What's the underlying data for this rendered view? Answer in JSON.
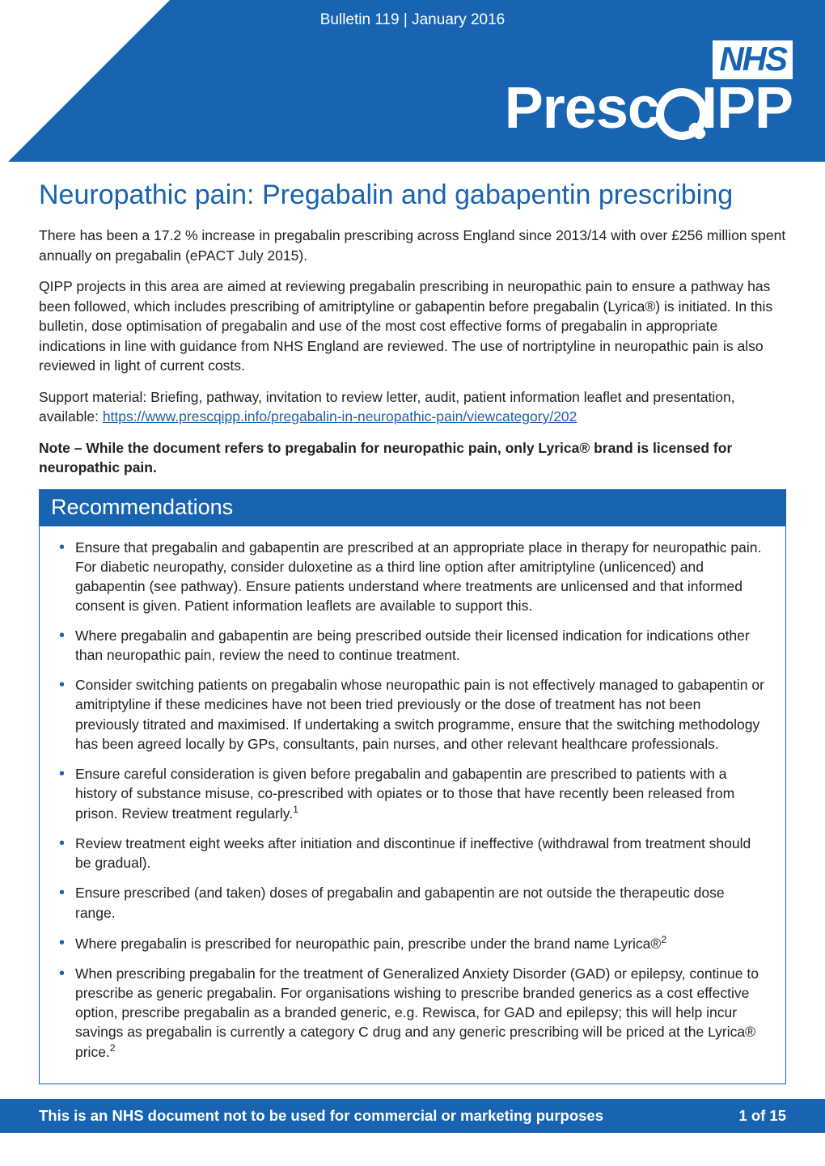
{
  "colors": {
    "primary": "#1864b0",
    "white": "#ffffff",
    "text": "#222222",
    "link": "#1864b0"
  },
  "typography": {
    "body_fontsize": 17.5,
    "h1_fontsize": 34,
    "rec_header_fontsize": 27,
    "footer_fontsize": 18.5,
    "logo_nhs_fontsize": 42,
    "logo_prescqipp_fontsize": 72
  },
  "header": {
    "bulletin_line": "Bulletin 119 | January 2016",
    "logo_nhs": "NHS",
    "logo_main_pre": "Presc",
    "logo_main_post": "IPP"
  },
  "title": "Neuropathic pain: Pregabalin and gabapentin prescribing",
  "paragraphs": {
    "p1": "There has been a 17.2 % increase in pregabalin prescribing across England since 2013/14 with over £256 million spent annually on pregabalin (ePACT July 2015).",
    "p2": "QIPP projects in this area are aimed at reviewing pregabalin prescribing in neuropathic pain to ensure a pathway has been followed, which includes prescribing of amitriptyline or gabapentin before pregabalin (Lyrica®) is initiated. In this bulletin, dose optimisation of pregabalin and use of the most cost effective forms of pregabalin in appropriate indications in line with guidance from NHS England are reviewed. The use of nortriptyline in neuropathic pain is also reviewed in light of current costs.",
    "p3_pre": "Support material:  Briefing, pathway, invitation to review letter, audit, patient information leaflet and presentation, available: ",
    "p3_link": "https://www.prescqipp.info/pregabalin-in-neuropathic-pain/viewcategory/202",
    "note": "Note – While the document refers to pregabalin for neuropathic pain, only Lyrica® brand is licensed for neuropathic pain."
  },
  "recommendations": {
    "header": "Recommendations",
    "items": [
      "Ensure that pregabalin and gabapentin are prescribed at an appropriate place in therapy for neuropathic pain. For diabetic neuropathy, consider duloxetine as a third line option after amitriptyline (unlicenced) and gabapentin (see pathway). Ensure patients understand where treatments are unlicensed and that informed consent is given. Patient information leaflets are available to support this.",
      "Where pregabalin and gabapentin are being prescribed outside their licensed indication for indications other than neuropathic pain, review the need to continue treatment.",
      "Consider switching patients on pregabalin whose neuropathic pain is not effectively managed to gabapentin or amitriptyline if these medicines have not been tried previously or the dose of treatment has not been previously titrated and maximised. If undertaking a switch programme, ensure that the switching methodology has been agreed locally by GPs, consultants, pain nurses, and other relevant healthcare professionals.",
      "Ensure careful consideration is given before pregabalin and gabapentin are prescribed to patients with a history of substance misuse, co-prescribed with opiates or to those that have recently been released from prison. Review treatment regularly.",
      "Review treatment eight weeks after initiation and discontinue if ineffective (withdrawal from treatment should be gradual).",
      "Ensure prescribed (and taken) doses of pregabalin and gabapentin are not outside the therapeutic dose range.",
      "Where pregabalin is prescribed for neuropathic pain, prescribe under the brand name Lyrica®",
      "When prescribing pregabalin for the treatment of Generalized Anxiety Disorder (GAD) or epilepsy, continue to prescribe as generic pregabalin. For organisations wishing to prescribe branded generics as a cost effective option, prescribe pregabalin as a branded generic, e.g. Rewisca, for GAD and epilepsy; this will help incur savings as pregabalin is currently a category C drug and any generic prescribing will be priced at the Lyrica® price."
    ],
    "sup_refs": {
      "3": "1",
      "6": "2",
      "7": "2"
    }
  },
  "footer": {
    "text": "This is an NHS document not to be used for commercial or marketing purposes",
    "page": "1 of 15"
  }
}
